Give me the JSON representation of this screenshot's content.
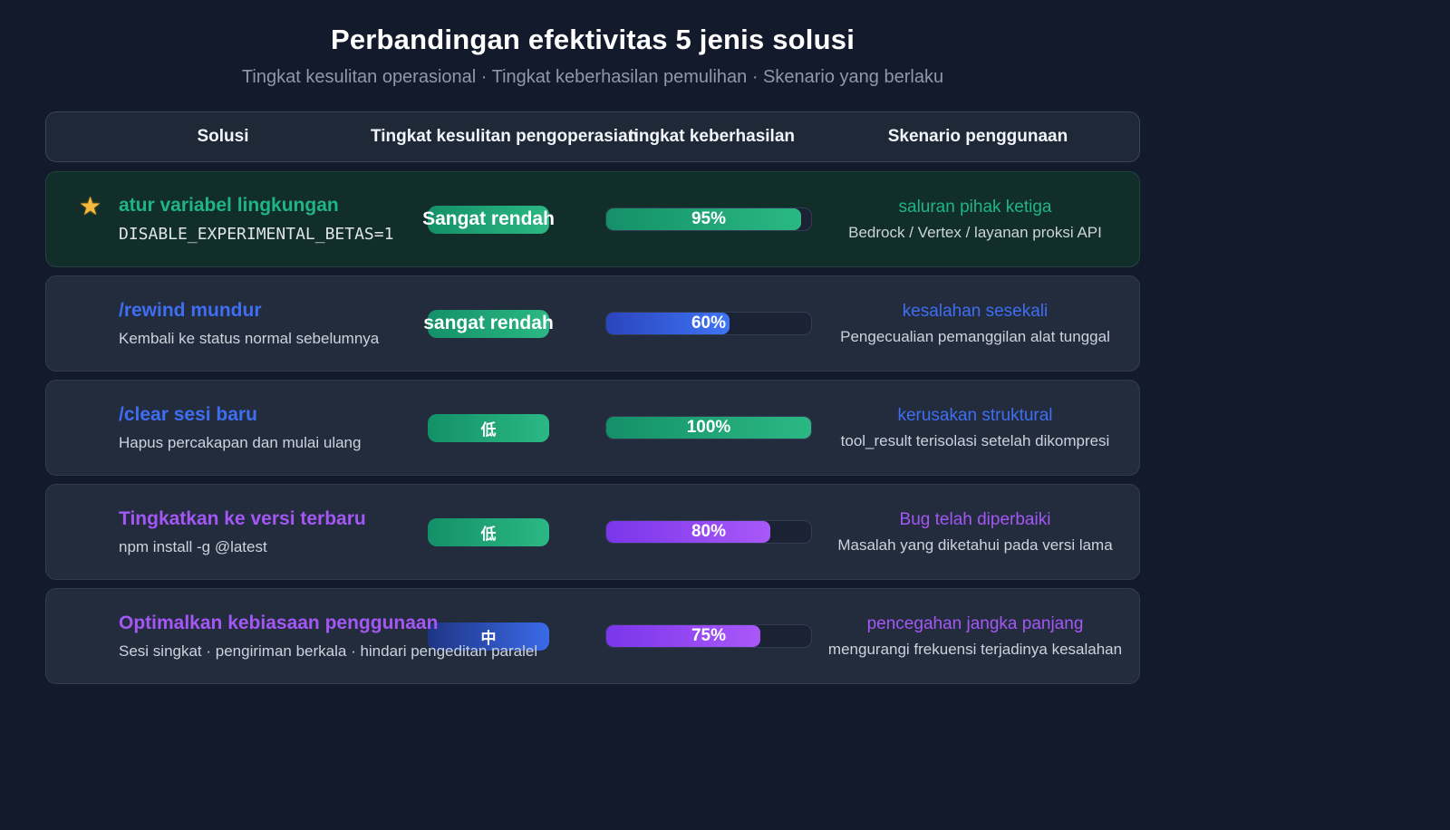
{
  "chart_data": {
    "type": "table",
    "title": "Perbandingan efektivitas 5 jenis solusi",
    "subtitle": "Tingkat kesulitan operasional · Tingkat keberhasilan pemulihan · Skenario yang berlaku",
    "headers": {
      "solution": "Solusi",
      "difficulty": "Tingkat kesulitan pengoperasian",
      "success": "tingkat keberhasilan",
      "scenario": "Skenario penggunaan"
    },
    "rows": [
      {
        "starred": true,
        "highlight": true,
        "accent": "green",
        "title": "atur variabel lingkungan",
        "subtitle": "DISABLE_EXPERIMENTAL_BETAS=1",
        "badge": {
          "label": "Sangat rendah",
          "color": "green"
        },
        "progress": {
          "value": 95,
          "label": "95%",
          "color": "green"
        },
        "scenario_title": "saluran pihak ketiga",
        "scenario_subtitle": "Bedrock / Vertex / layanan proksi API"
      },
      {
        "starred": false,
        "highlight": false,
        "accent": "blue",
        "title": "/rewind mundur",
        "subtitle": "Kembali ke status normal sebelumnya",
        "badge": {
          "label": "sangat rendah",
          "color": "green"
        },
        "progress": {
          "value": 60,
          "label": "60%",
          "color": "blue"
        },
        "scenario_title": "kesalahan sesekali",
        "scenario_subtitle": "Pengecualian pemanggilan alat tunggal"
      },
      {
        "starred": false,
        "highlight": false,
        "accent": "blue",
        "title": "/clear sesi baru",
        "subtitle": "Hapus percakapan dan mulai ulang",
        "badge": {
          "label": "低",
          "color": "green"
        },
        "progress": {
          "value": 100,
          "label": "100%",
          "color": "green"
        },
        "scenario_title": "kerusakan struktural",
        "scenario_subtitle": "tool_result terisolasi setelah dikompresi"
      },
      {
        "starred": false,
        "highlight": false,
        "accent": "purple",
        "title": "Tingkatkan ke versi terbaru",
        "subtitle": "npm install -g @latest",
        "badge": {
          "label": "低",
          "color": "green"
        },
        "progress": {
          "value": 80,
          "label": "80%",
          "color": "purple"
        },
        "scenario_title": "Bug telah diperbaiki",
        "scenario_subtitle": "Masalah yang diketahui pada versi lama"
      },
      {
        "starred": false,
        "highlight": false,
        "accent": "purple",
        "title": "Optimalkan kebiasaan penggunaan",
        "subtitle": "Sesi singkat · pengiriman berkala · hindari pengeditan paralel",
        "badge": {
          "label": "中",
          "color": "blue"
        },
        "progress": {
          "value": 75,
          "label": "75%",
          "color": "purple"
        },
        "scenario_title": "pencegahan jangka panjang",
        "scenario_subtitle": "mengurangi frekuensi terjadinya kesalahan"
      }
    ]
  },
  "icons": {
    "star": "★"
  },
  "colors": {
    "background": "#131a2b",
    "card": "#222c3d",
    "card_highlight": "#122e2a",
    "accent_green": "#1fb585",
    "accent_blue": "#3f6ef2",
    "accent_purple": "#a457f5",
    "star_gold": "#f6b93b",
    "bar_green": [
      "#149068",
      "#2bb884"
    ],
    "bar_blue": [
      "#2a45bd",
      "#3f74f4"
    ],
    "bar_purple": [
      "#7a36ea",
      "#a958f8"
    ],
    "badge_blue": [
      "#1e3584",
      "#3a6ae8"
    ]
  }
}
